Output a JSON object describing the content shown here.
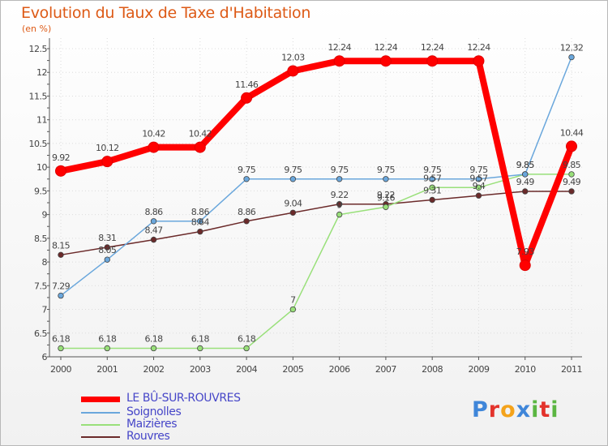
{
  "chart_data": {
    "type": "line",
    "title": "Evolution du Taux de Taxe d'Habitation",
    "subtitle": "(en %)",
    "xlabel": "",
    "ylabel": "",
    "ylim": [
      6,
      12.5
    ],
    "yticks": [
      "6",
      "6.5",
      "7",
      "7.5",
      "8",
      "8.5",
      "9",
      "9.5",
      "10",
      "10.5",
      "11",
      "11.5",
      "12",
      "12.5"
    ],
    "categories": [
      "2000",
      "2001",
      "2002",
      "2003",
      "2004",
      "2005",
      "2006",
      "2007",
      "2008",
      "2009",
      "2010",
      "2011"
    ],
    "series": [
      {
        "name": "LE BÛ-SUR-ROUVRES",
        "color": "#ff0000",
        "values": [
          9.92,
          10.12,
          10.42,
          10.42,
          11.46,
          12.03,
          12.24,
          12.24,
          12.24,
          12.24,
          7.93,
          10.44
        ],
        "labels": [
          "9.92",
          "10.12",
          "10.42",
          "10.42",
          "11.46",
          "12.03",
          "12.24",
          "12.24",
          "12.24",
          "12.24",
          "7.93",
          "10.44"
        ]
      },
      {
        "name": "Soignolles",
        "color": "#6aa7dc",
        "values": [
          7.29,
          8.05,
          8.86,
          8.86,
          9.75,
          9.75,
          9.75,
          9.75,
          9.75,
          9.75,
          9.85,
          12.32
        ],
        "labels": [
          "7.29",
          "8.05",
          "8.86",
          "8.86",
          "9.75",
          "9.75",
          "9.75",
          "9.75",
          "9.75",
          "9.75",
          "9.85",
          "12.32"
        ]
      },
      {
        "name": "Maizières",
        "color": "#99e07a",
        "values": [
          6.18,
          6.18,
          6.18,
          6.18,
          6.18,
          7.0,
          9.0,
          9.16,
          9.57,
          9.57,
          9.85,
          9.85
        ],
        "labels": [
          "6.18",
          "6.18",
          "6.18",
          "6.18",
          "6.18",
          "7",
          "9",
          "9.16",
          "9.57",
          "9.57",
          "9.85",
          "9.85"
        ]
      },
      {
        "name": "Rouvres",
        "color": "#6b2a2a",
        "values": [
          8.15,
          8.31,
          8.47,
          8.64,
          8.86,
          9.04,
          9.22,
          9.22,
          9.31,
          9.4,
          9.49,
          9.49
        ],
        "labels": [
          "8.15",
          "8.31",
          "8.47",
          "8.64",
          "8.86",
          "9.04",
          "9.22",
          "9.22",
          "9.31",
          "9.4",
          "9.49",
          "9.49"
        ]
      }
    ],
    "legend": [
      {
        "name": "LE BÛ-SUR-ROUVRES",
        "color": "#ff0000"
      },
      {
        "name": "Soignolles",
        "color": "#6aa7dc"
      },
      {
        "name": "Maizières",
        "color": "#99e07a"
      },
      {
        "name": "Rouvres",
        "color": "#6b2a2a"
      }
    ]
  },
  "legend_labels": [
    "LE BÛ-SUR-ROUVRES",
    "Soignolles",
    "Maizières",
    "Rouvres"
  ],
  "logo": {
    "text": "Proxiti",
    "letters": [
      "P",
      "r",
      "o",
      "x",
      "i",
      "t",
      "i"
    ],
    "colors": [
      "#3f86d9",
      "#e3332c",
      "#f4a31b",
      "#3f86d9",
      "#5bb642",
      "#e3332c",
      "#5bb642"
    ]
  }
}
